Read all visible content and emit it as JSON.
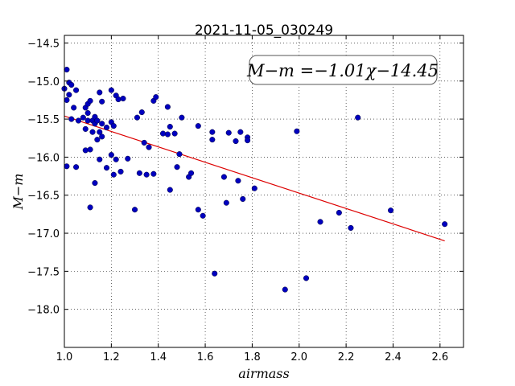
{
  "chart_data": {
    "type": "scatter",
    "title": "2021-11-05_030249",
    "xlabel": "airmass",
    "ylabel": "M−m",
    "xlim": [
      1.0,
      2.7
    ],
    "ylim": [
      -18.5,
      -14.4
    ],
    "y_inverted": true,
    "grid": true,
    "xticks": [
      1.0,
      1.2,
      1.4,
      1.6,
      1.8,
      2.0,
      2.2,
      2.4,
      2.6
    ],
    "xtick_labels": [
      "1.0",
      "1.2",
      "1.4",
      "1.6",
      "1.8",
      "2.0",
      "2.2",
      "2.4",
      "2.6"
    ],
    "yticks": [
      -14.5,
      -15.0,
      -15.5,
      -16.0,
      -16.5,
      -17.0,
      -17.5,
      -18.0
    ],
    "ytick_labels": [
      "−14.5",
      "−15.0",
      "−15.5",
      "−16.0",
      "−16.5",
      "−17.0",
      "−17.5",
      "−18.0"
    ],
    "annotation": "M−m =−1.01χ−14.45",
    "colors": {
      "points": "#0000bf",
      "fit": "#dd0000"
    },
    "fit_line": {
      "x": [
        1.0,
        2.62
      ],
      "y": [
        -15.46,
        -17.1
      ]
    },
    "points": {
      "x": [
        1.0,
        1.01,
        1.01,
        1.01,
        1.02,
        1.02,
        1.03,
        1.03,
        1.04,
        1.05,
        1.05,
        1.06,
        1.08,
        1.09,
        1.09,
        1.09,
        1.1,
        1.1,
        1.1,
        1.11,
        1.11,
        1.11,
        1.12,
        1.12,
        1.13,
        1.13,
        1.13,
        1.14,
        1.14,
        1.15,
        1.15,
        1.15,
        1.16,
        1.16,
        1.16,
        1.18,
        1.18,
        1.2,
        1.2,
        1.2,
        1.21,
        1.21,
        1.22,
        1.22,
        1.23,
        1.24,
        1.25,
        1.27,
        1.3,
        1.31,
        1.32,
        1.33,
        1.34,
        1.35,
        1.36,
        1.38,
        1.38,
        1.39,
        1.42,
        1.44,
        1.44,
        1.45,
        1.45,
        1.47,
        1.48,
        1.49,
        1.5,
        1.53,
        1.54,
        1.57,
        1.57,
        1.59,
        1.63,
        1.63,
        1.64,
        1.68,
        1.69,
        1.7,
        1.73,
        1.74,
        1.75,
        1.76,
        1.78,
        1.78,
        1.81,
        1.94,
        1.99,
        2.03,
        2.09,
        2.17,
        2.22,
        2.25,
        2.39,
        2.62
      ],
      "y": [
        -15.1,
        -16.12,
        -15.25,
        -14.85,
        -15.02,
        -15.18,
        -15.5,
        -15.05,
        -15.35,
        -16.13,
        -15.12,
        -15.52,
        -15.48,
        -15.35,
        -15.63,
        -15.91,
        -15.3,
        -15.42,
        -15.52,
        -15.26,
        -15.9,
        -16.66,
        -15.52,
        -15.67,
        -16.34,
        -15.56,
        -15.47,
        -15.77,
        -15.52,
        -15.15,
        -16.03,
        -15.67,
        -15.73,
        -15.56,
        -15.27,
        -16.14,
        -15.61,
        -15.12,
        -15.54,
        -15.97,
        -15.59,
        -16.23,
        -15.19,
        -16.03,
        -15.24,
        -16.19,
        -15.23,
        -16.02,
        -16.69,
        -15.48,
        -16.21,
        -15.41,
        -15.81,
        -16.23,
        -15.87,
        -16.22,
        -15.26,
        -15.21,
        -15.69,
        -15.34,
        -15.7,
        -16.43,
        -15.6,
        -15.69,
        -16.13,
        -15.96,
        -15.48,
        -16.26,
        -16.21,
        -16.69,
        -15.59,
        -16.77,
        -15.67,
        -15.77,
        -17.53,
        -16.26,
        -16.6,
        -15.68,
        -15.79,
        -16.31,
        -15.67,
        -16.55,
        -15.74,
        -15.78,
        -16.41,
        -17.74,
        -15.66,
        -17.59,
        -16.85,
        -16.73,
        -16.93,
        -15.48,
        -16.7,
        -16.88
      ]
    }
  }
}
